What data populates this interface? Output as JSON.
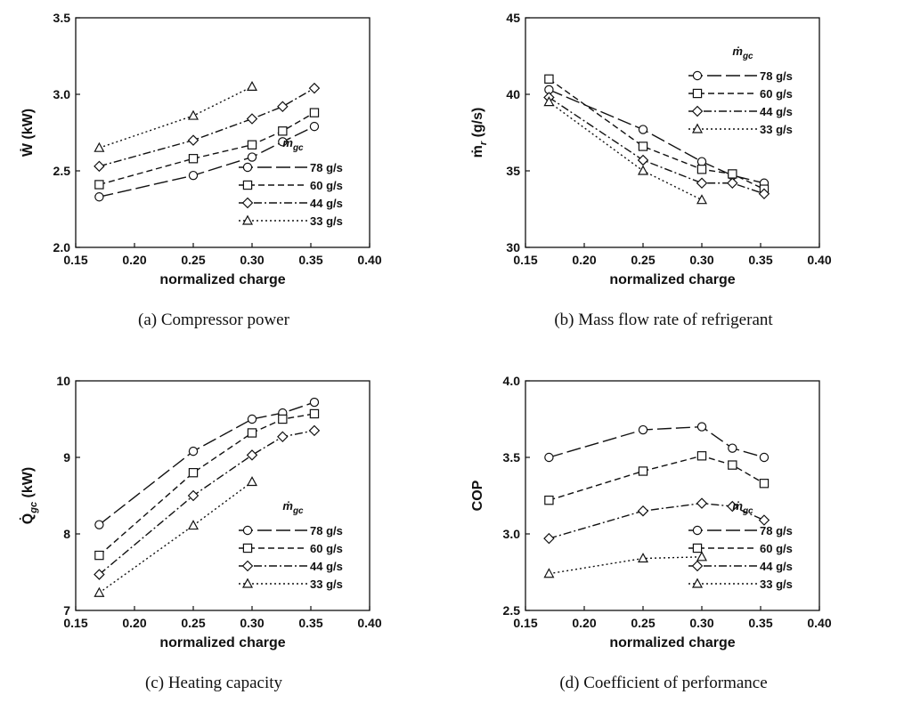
{
  "chart_data": [
    {
      "id": "a",
      "type": "line",
      "caption": "(a) Compressor power",
      "xlabel": "normalized charge",
      "ylabel": "Ẇ (kW)",
      "xlim": [
        0.15,
        0.4
      ],
      "ylim": [
        2.0,
        3.5
      ],
      "xticks": [
        "0.15",
        "0.20",
        "0.25",
        "0.30",
        "0.35",
        "0.40"
      ],
      "yticks": [
        "2.0",
        "2.5",
        "3.0",
        "3.5"
      ],
      "legend_title": "ṁ",
      "legend_title_sub": "gc",
      "legend_position": "bottom-right",
      "series": [
        {
          "name": "78 g/s",
          "marker": "circle",
          "dash": "long-dash",
          "x": [
            0.17,
            0.25,
            0.3,
            0.326,
            0.353
          ],
          "y": [
            2.33,
            2.47,
            2.59,
            2.69,
            2.79
          ]
        },
        {
          "name": "60 g/s",
          "marker": "square",
          "dash": "dash",
          "x": [
            0.17,
            0.25,
            0.3,
            0.326,
            0.353
          ],
          "y": [
            2.41,
            2.58,
            2.67,
            2.76,
            2.88
          ]
        },
        {
          "name": "44 g/s",
          "marker": "diamond",
          "dash": "dash-dot",
          "x": [
            0.17,
            0.25,
            0.3,
            0.326,
            0.353
          ],
          "y": [
            2.53,
            2.7,
            2.84,
            2.92,
            3.04
          ]
        },
        {
          "name": "33 g/s",
          "marker": "triangle",
          "dash": "dot",
          "x": [
            0.17,
            0.25,
            0.3
          ],
          "y": [
            2.65,
            2.86,
            3.05
          ]
        }
      ]
    },
    {
      "id": "b",
      "type": "line",
      "caption": "(b) Mass flow rate of refrigerant",
      "xlabel": "normalized charge",
      "ylabel": "ṁ (g/s)",
      "ylabel_sub": "r",
      "xlim": [
        0.15,
        0.4
      ],
      "ylim": [
        30,
        45
      ],
      "xticks": [
        "0.15",
        "0.20",
        "0.25",
        "0.30",
        "0.35",
        "0.40"
      ],
      "yticks": [
        "30",
        "35",
        "40",
        "45"
      ],
      "legend_title": "ṁ",
      "legend_title_sub": "gc",
      "legend_position": "top-right",
      "series": [
        {
          "name": "78 g/s",
          "marker": "circle",
          "dash": "long-dash",
          "x": [
            0.17,
            0.25,
            0.3,
            0.326,
            0.353
          ],
          "y": [
            40.3,
            37.7,
            35.6,
            34.7,
            34.2
          ]
        },
        {
          "name": "60 g/s",
          "marker": "square",
          "dash": "dash",
          "x": [
            0.17,
            0.25,
            0.3,
            0.326,
            0.353
          ],
          "y": [
            41.0,
            36.6,
            35.1,
            34.8,
            33.8
          ]
        },
        {
          "name": "44 g/s",
          "marker": "diamond",
          "dash": "dash-dot",
          "x": [
            0.17,
            0.25,
            0.3,
            0.326,
            0.353
          ],
          "y": [
            39.8,
            35.7,
            34.2,
            34.2,
            33.5
          ]
        },
        {
          "name": "33 g/s",
          "marker": "triangle",
          "dash": "dot",
          "x": [
            0.17,
            0.25,
            0.3
          ],
          "y": [
            39.5,
            35.0,
            33.1
          ]
        }
      ]
    },
    {
      "id": "c",
      "type": "line",
      "caption": "(c) Heating capacity",
      "xlabel": "normalized charge",
      "ylabel": "Q̇ (kW)",
      "ylabel_sub": "gc",
      "xlim": [
        0.15,
        0.4
      ],
      "ylim": [
        7,
        10
      ],
      "xticks": [
        "0.15",
        "0.20",
        "0.25",
        "0.30",
        "0.35",
        "0.40"
      ],
      "yticks": [
        "7",
        "8",
        "9",
        "10"
      ],
      "legend_title": "ṁ",
      "legend_title_sub": "gc",
      "legend_position": "bottom-right",
      "series": [
        {
          "name": "78 g/s",
          "marker": "circle",
          "dash": "long-dash",
          "x": [
            0.17,
            0.25,
            0.3,
            0.326,
            0.353
          ],
          "y": [
            8.12,
            9.08,
            9.5,
            9.58,
            9.72
          ]
        },
        {
          "name": "60 g/s",
          "marker": "square",
          "dash": "dash",
          "x": [
            0.17,
            0.25,
            0.3,
            0.326,
            0.353
          ],
          "y": [
            7.72,
            8.8,
            9.32,
            9.5,
            9.57
          ]
        },
        {
          "name": "44 g/s",
          "marker": "diamond",
          "dash": "dash-dot",
          "x": [
            0.17,
            0.25,
            0.3,
            0.326,
            0.353
          ],
          "y": [
            7.47,
            8.5,
            9.03,
            9.27,
            9.35
          ]
        },
        {
          "name": "33 g/s",
          "marker": "triangle",
          "dash": "dot",
          "x": [
            0.17,
            0.25,
            0.3
          ],
          "y": [
            7.23,
            8.11,
            8.68
          ]
        }
      ]
    },
    {
      "id": "d",
      "type": "line",
      "caption": "(d) Coefficient of performance",
      "xlabel": "normalized charge",
      "ylabel": "COP",
      "xlim": [
        0.15,
        0.4
      ],
      "ylim": [
        2.5,
        4.0
      ],
      "xticks": [
        "0.15",
        "0.20",
        "0.25",
        "0.30",
        "0.35",
        "0.40"
      ],
      "yticks": [
        "2.5",
        "3.0",
        "3.5",
        "4.0"
      ],
      "legend_title": "ṁ",
      "legend_title_sub": "gc",
      "legend_position": "bottom-right",
      "series": [
        {
          "name": "78 g/s",
          "marker": "circle",
          "dash": "long-dash",
          "x": [
            0.17,
            0.25,
            0.3,
            0.326,
            0.353
          ],
          "y": [
            3.5,
            3.68,
            3.7,
            3.56,
            3.5
          ]
        },
        {
          "name": "60 g/s",
          "marker": "square",
          "dash": "dash",
          "x": [
            0.17,
            0.25,
            0.3,
            0.326,
            0.353
          ],
          "y": [
            3.22,
            3.41,
            3.51,
            3.45,
            3.33
          ]
        },
        {
          "name": "44 g/s",
          "marker": "diamond",
          "dash": "dash-dot",
          "x": [
            0.17,
            0.25,
            0.3,
            0.326,
            0.353
          ],
          "y": [
            2.97,
            3.15,
            3.2,
            3.18,
            3.09
          ]
        },
        {
          "name": "33 g/s",
          "marker": "triangle",
          "dash": "dot",
          "x": [
            0.17,
            0.25,
            0.3
          ],
          "y": [
            2.74,
            2.84,
            2.85
          ]
        }
      ]
    }
  ]
}
